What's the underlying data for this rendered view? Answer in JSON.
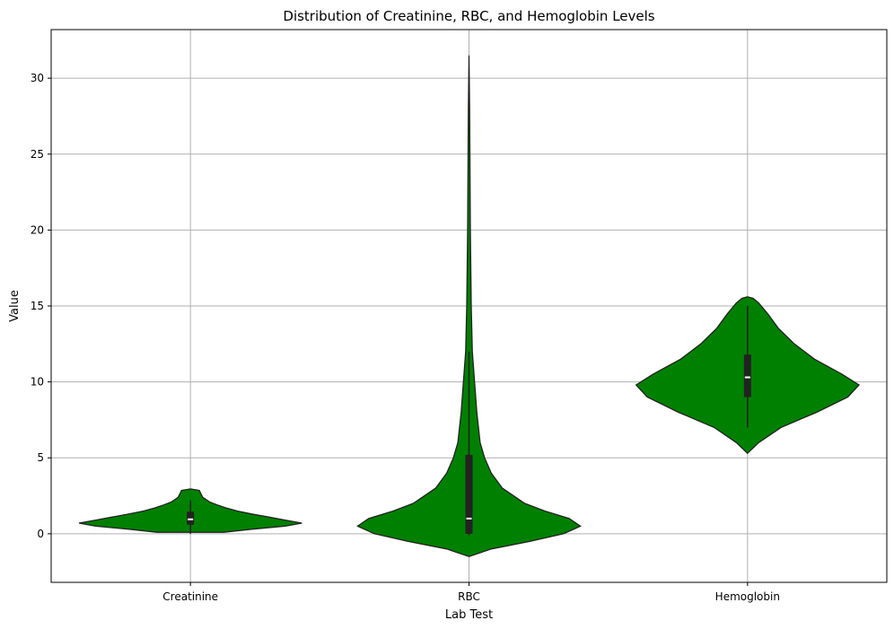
{
  "chart_data": {
    "type": "violin",
    "title": "Distribution of Creatinine, RBC, and Hemoglobin Levels",
    "xlabel": "Lab Test",
    "ylabel": "Value",
    "categories": [
      "Creatinine",
      "RBC",
      "Hemoglobin"
    ],
    "ylim": [
      -3.2,
      33.2
    ],
    "yticks": [
      0,
      5,
      10,
      15,
      20,
      25,
      30
    ],
    "grid": true,
    "colors": {
      "fill": "#008000",
      "edge": "#222222",
      "box": "#222222",
      "median": "#ffffff"
    },
    "series": [
      {
        "name": "Creatinine",
        "min": 0.0,
        "q1": 0.6,
        "median": 0.95,
        "q3": 1.45,
        "max": 2.2,
        "density": [
          [
            0.1,
            0.3
          ],
          [
            0.3,
            0.55
          ],
          [
            0.5,
            0.85
          ],
          [
            0.7,
            1.0
          ],
          [
            0.9,
            0.85
          ],
          [
            1.1,
            0.7
          ],
          [
            1.3,
            0.55
          ],
          [
            1.5,
            0.42
          ],
          [
            1.7,
            0.32
          ],
          [
            1.9,
            0.24
          ],
          [
            2.1,
            0.17
          ],
          [
            2.4,
            0.11
          ],
          [
            2.7,
            0.09
          ],
          [
            2.85,
            0.08
          ],
          [
            2.95,
            0.0
          ]
        ]
      },
      {
        "name": "RBC",
        "min": -0.1,
        "q1": 0.0,
        "median": 1.0,
        "q3": 5.2,
        "max": 12.0,
        "density": [
          [
            -1.5,
            0.0
          ],
          [
            -1.0,
            0.2
          ],
          [
            -0.5,
            0.55
          ],
          [
            0.0,
            0.85
          ],
          [
            0.5,
            1.0
          ],
          [
            1.0,
            0.9
          ],
          [
            1.5,
            0.68
          ],
          [
            2.0,
            0.5
          ],
          [
            3.0,
            0.3
          ],
          [
            4.0,
            0.2
          ],
          [
            5.0,
            0.14
          ],
          [
            6.0,
            0.1
          ],
          [
            8.0,
            0.07
          ],
          [
            10.0,
            0.05
          ],
          [
            12.0,
            0.03
          ],
          [
            15.0,
            0.02
          ],
          [
            20.0,
            0.012
          ],
          [
            25.0,
            0.008
          ],
          [
            28.0,
            0.006
          ],
          [
            31.5,
            0.0
          ]
        ]
      },
      {
        "name": "Hemoglobin",
        "min": 7.0,
        "q1": 9.0,
        "median": 10.3,
        "q3": 11.8,
        "max": 15.0,
        "density": [
          [
            5.3,
            0.0
          ],
          [
            6.0,
            0.1
          ],
          [
            7.0,
            0.3
          ],
          [
            8.0,
            0.62
          ],
          [
            9.0,
            0.9
          ],
          [
            9.8,
            1.0
          ],
          [
            10.5,
            0.85
          ],
          [
            11.5,
            0.6
          ],
          [
            12.5,
            0.42
          ],
          [
            13.5,
            0.28
          ],
          [
            14.5,
            0.18
          ],
          [
            15.2,
            0.1
          ],
          [
            15.5,
            0.05
          ],
          [
            15.6,
            0.0
          ]
        ]
      }
    ]
  }
}
